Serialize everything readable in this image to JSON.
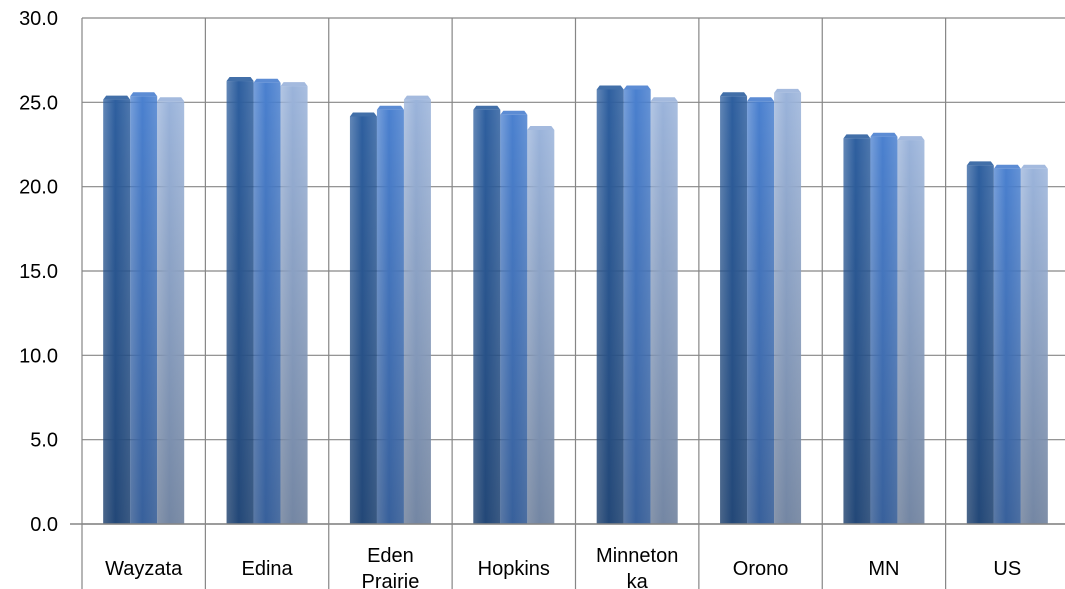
{
  "chart_data": {
    "type": "bar",
    "title": "",
    "xlabel": "",
    "ylabel": "",
    "ylim": [
      0,
      30
    ],
    "yticks": [
      "0.0",
      "5.0",
      "10.0",
      "15.0",
      "20.0",
      "25.0",
      "30.0"
    ],
    "grid": true,
    "legend": "none",
    "categories": [
      [
        "Wayzata"
      ],
      [
        "Edina"
      ],
      [
        "Eden",
        "Prairie"
      ],
      [
        "Hopkins"
      ],
      [
        "Minneton",
        "ka"
      ],
      [
        "Orono"
      ],
      [
        "MN"
      ],
      [
        "US"
      ]
    ],
    "series": [
      {
        "values": [
          25.4,
          26.5,
          24.4,
          24.8,
          26.0,
          25.6,
          23.1,
          21.5
        ]
      },
      {
        "values": [
          25.6,
          26.4,
          24.8,
          24.5,
          26.0,
          25.3,
          23.2,
          21.3
        ]
      },
      {
        "values": [
          25.3,
          26.2,
          25.4,
          23.6,
          25.3,
          25.8,
          23.0,
          21.3
        ]
      }
    ],
    "colors": [
      "#2e5f9f",
      "#4a80cf",
      "#9ab3da"
    ]
  }
}
